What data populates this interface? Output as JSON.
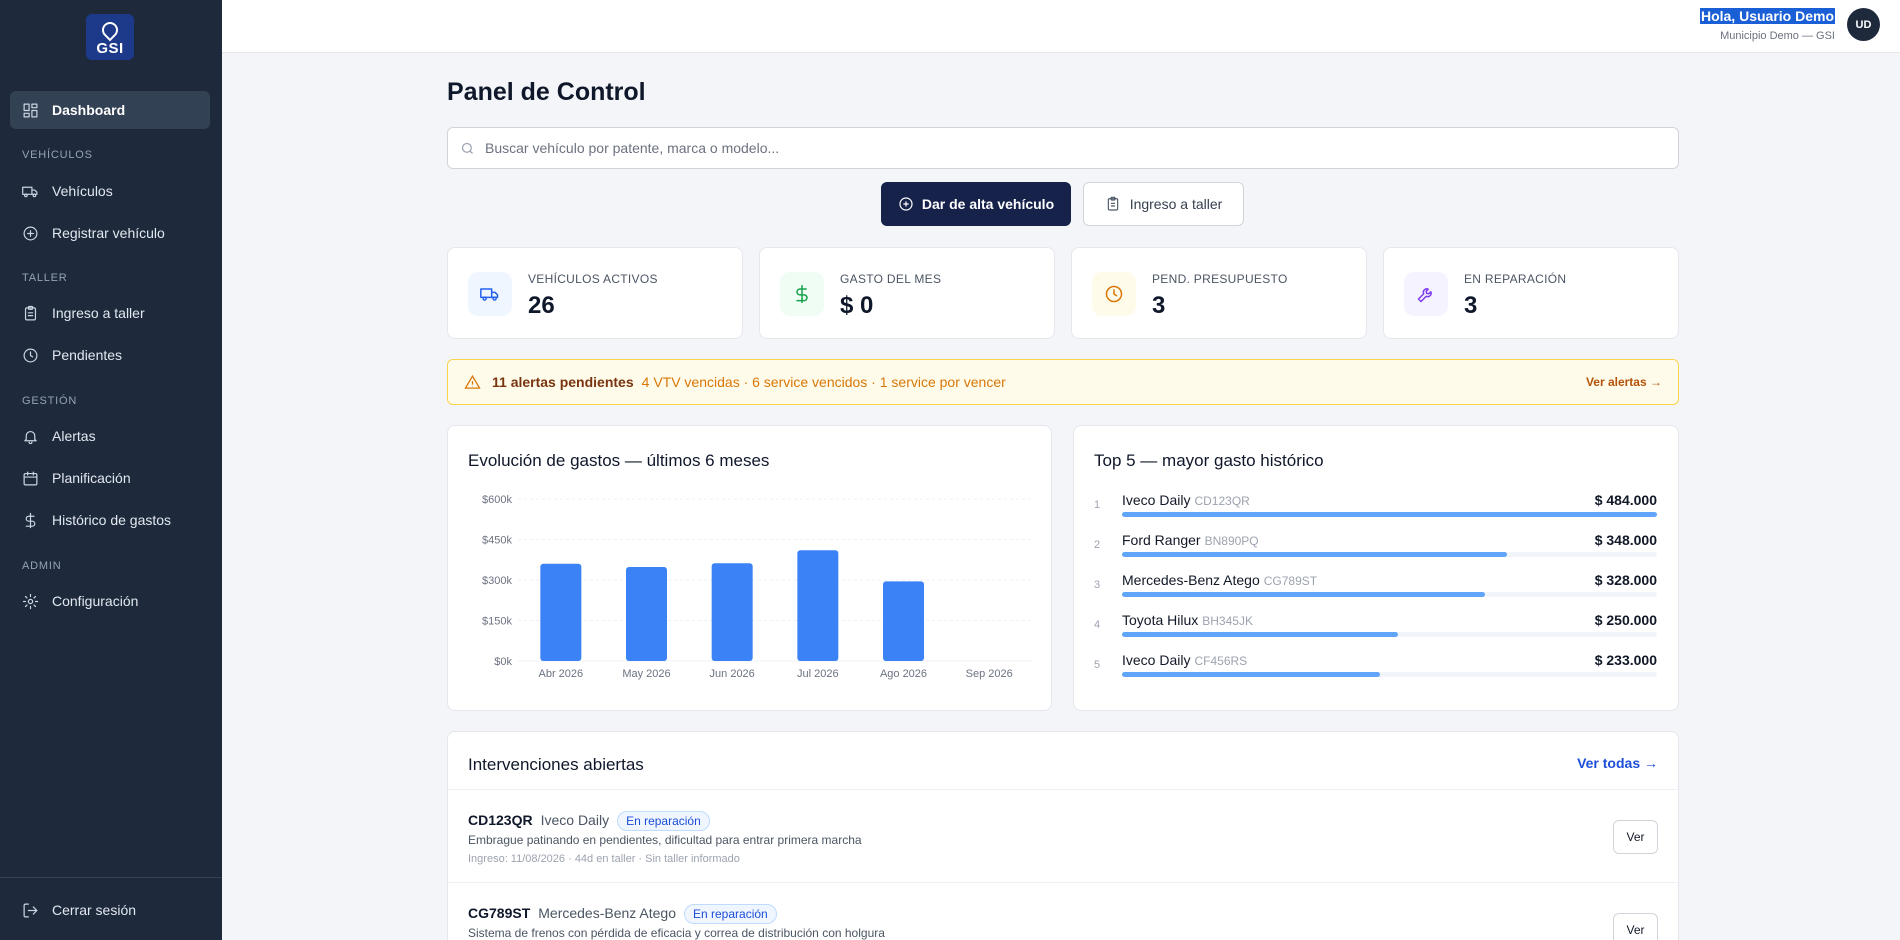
{
  "app": {
    "logo_text": "GSI"
  },
  "sidebar": {
    "items": [
      {
        "label": "Dashboard"
      },
      {
        "label": "Vehículos"
      },
      {
        "label": "Registrar vehículo"
      },
      {
        "label": "Ingreso a taller"
      },
      {
        "label": "Pendientes"
      },
      {
        "label": "Alertas"
      },
      {
        "label": "Planificación"
      },
      {
        "label": "Histórico de gastos"
      },
      {
        "label": "Configuración"
      }
    ],
    "sections": [
      "VEHÍCULOS",
      "TALLER",
      "GESTIÓN",
      "ADMIN"
    ],
    "logout_label": "Cerrar sesión"
  },
  "header": {
    "greeting": "Hola, Usuario Demo",
    "org": "Municipio Demo — GSI",
    "avatar_initials": "UD"
  },
  "main": {
    "title": "Panel de Control",
    "search_placeholder": "Buscar vehículo por patente, marca o modelo...",
    "primary_button": "Dar de alta vehículo",
    "secondary_button": "Ingreso a taller",
    "stats": [
      {
        "label": "VEHÍCULOS ACTIVOS",
        "value": "26",
        "icon": "truck-icon",
        "color": "#2563eb"
      },
      {
        "label": "GASTO DEL MES",
        "value": "$ 0",
        "icon": "dollar-icon",
        "color": "#16a34a"
      },
      {
        "label": "PEND. PRESUPUESTO",
        "value": "3",
        "icon": "clock-icon",
        "color": "#d97706"
      },
      {
        "label": "EN REPARACIÓN",
        "value": "3",
        "icon": "wrench-icon",
        "color": "#7c3aed"
      }
    ],
    "alert": {
      "count": "11 alertas pendientes",
      "detail": "4 VTV vencidas · 6 service vencidos · 1 service por vencer",
      "link": "Ver alertas →"
    },
    "expenses_panel": {
      "title": "Evolución de gastos — últimos 6 meses"
    },
    "top5": {
      "title": "Top 5 — mayor gasto histórico",
      "rows": [
        {
          "rank": "1",
          "name": "Iveco Daily",
          "plate": "CD123QR",
          "amount": "$ 484.000",
          "value": 484000
        },
        {
          "rank": "2",
          "name": "Ford Ranger",
          "plate": "BN890PQ",
          "amount": "$ 348.000",
          "value": 348000
        },
        {
          "rank": "3",
          "name": "Mercedes-Benz Atego",
          "plate": "CG789ST",
          "amount": "$ 328.000",
          "value": 328000
        },
        {
          "rank": "4",
          "name": "Toyota Hilux",
          "plate": "BH345JK",
          "amount": "$ 250.000",
          "value": 250000
        },
        {
          "rank": "5",
          "name": "Iveco Daily",
          "plate": "CF456RS",
          "amount": "$ 233.000",
          "value": 233000
        }
      ]
    },
    "interventions": {
      "title": "Intervenciones abiertas",
      "link": "Ver todas →",
      "rows": [
        {
          "plate": "CD123QR",
          "model": "Iveco Daily",
          "status": "En reparación",
          "description": "Embrague patinando en pendientes, dificultad para entrar primera marcha",
          "meta": "Ingreso: 11/08/2026 · 44d en taller · Sin taller informado",
          "action": "Ver"
        },
        {
          "plate": "CG789ST",
          "model": "Mercedes-Benz Atego",
          "status": "En reparación",
          "description": "Sistema de frenos con pérdida de eficacia y correa de distribución con holgura",
          "meta": "",
          "action": "Ver"
        }
      ]
    }
  },
  "chart_data": {
    "type": "bar",
    "title": "Evolución de gastos — últimos 6 meses",
    "categories": [
      "Abr 2026",
      "May 2026",
      "Jun 2026",
      "Jul 2026",
      "Ago 2026",
      "Sep 2026"
    ],
    "values": [
      360000,
      348000,
      362000,
      410000,
      295000,
      0
    ],
    "ylim": [
      0,
      600000
    ],
    "yticks": [
      "$0k",
      "$150k",
      "$300k",
      "$450k",
      "$600k"
    ],
    "bar_color": "#3b82f6",
    "grid": true
  }
}
